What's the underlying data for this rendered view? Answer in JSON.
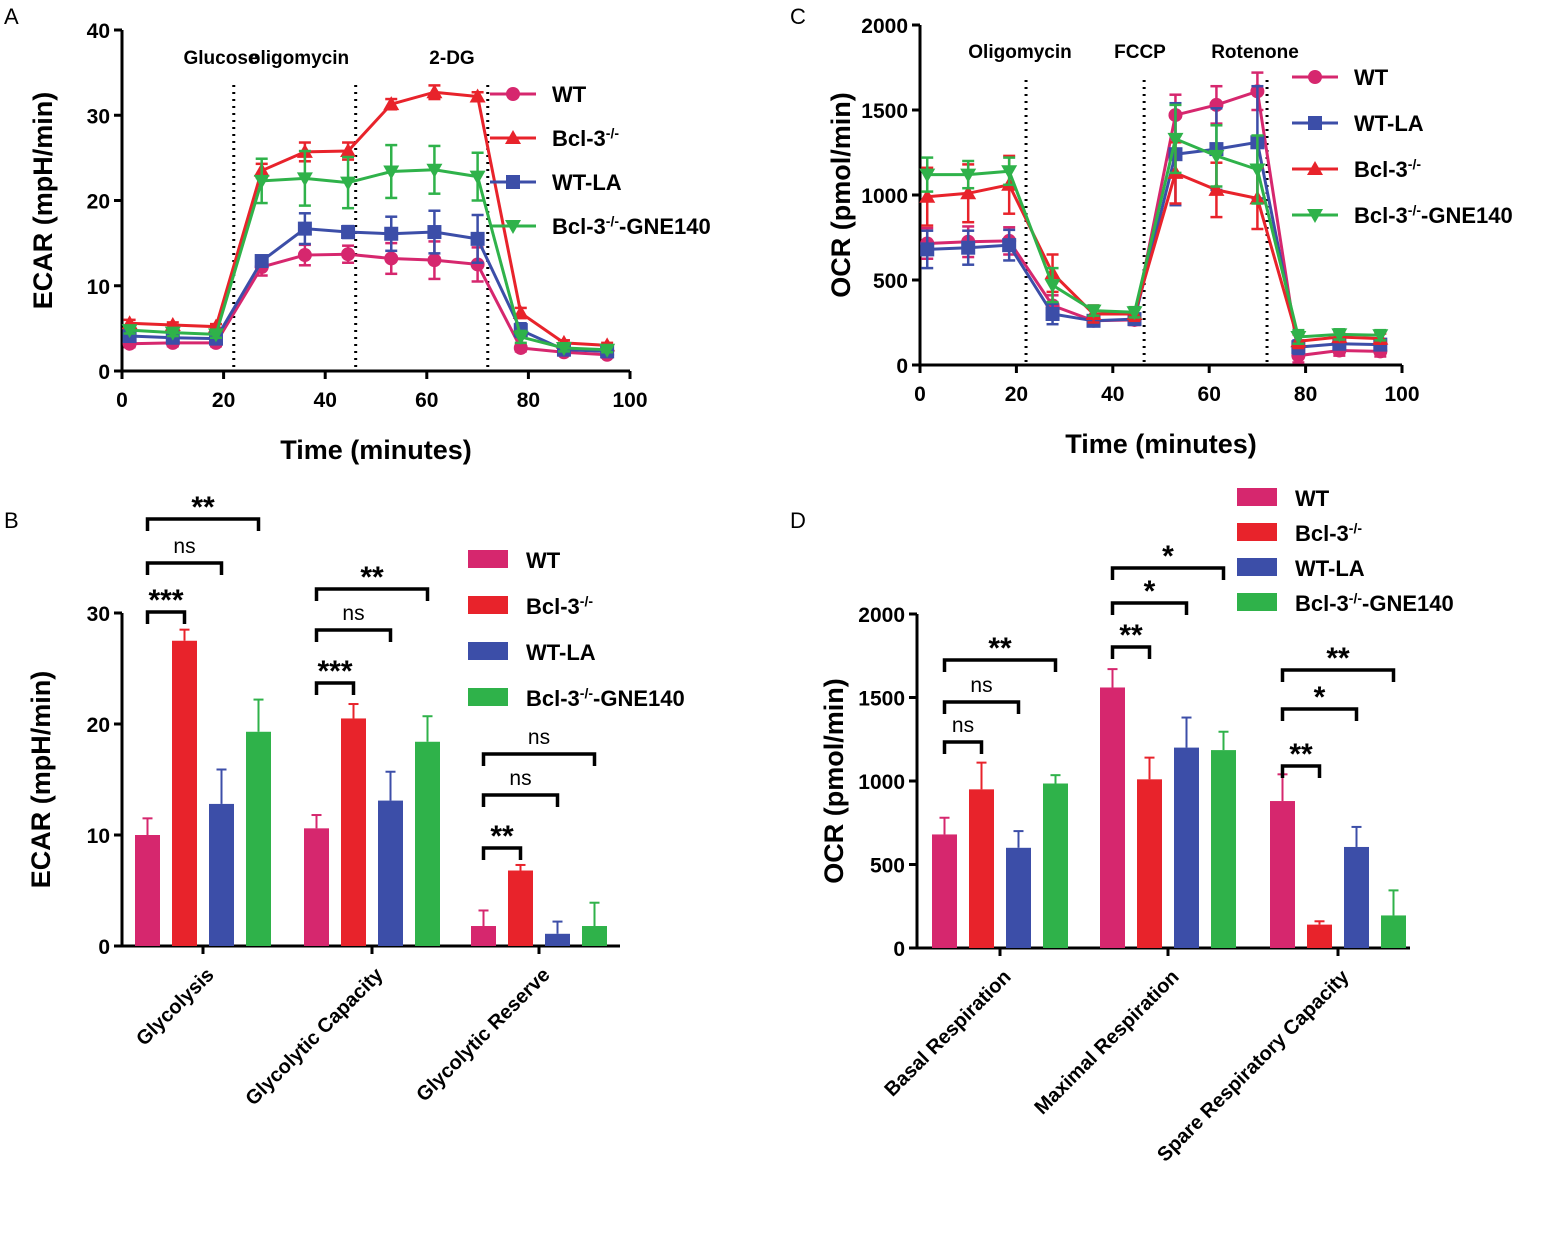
{
  "chart_data": [
    {
      "panel": "A",
      "type": "line",
      "xlabel": "Time (minutes)",
      "ylabel": "ECAR (mpH/min)",
      "xlim": [
        0,
        100
      ],
      "ylim": [
        0,
        40
      ],
      "xticks": [
        0,
        20,
        40,
        60,
        80,
        100
      ],
      "yticks": [
        0,
        10,
        20,
        30,
        40
      ],
      "injections": [
        {
          "label": "Glucose",
          "x": 22
        },
        {
          "label": "oligomycin",
          "x": 46
        },
        {
          "label": "2-DG",
          "x": 72
        }
      ],
      "x": [
        1.5,
        10,
        18.5,
        27.5,
        36,
        44.5,
        53,
        61.5,
        70,
        78.5,
        87,
        95.5
      ],
      "series": [
        {
          "name": "WT",
          "color": "#d6276e",
          "marker": "circle",
          "values": [
            3.2,
            3.3,
            3.3,
            12.2,
            13.6,
            13.7,
            13.2,
            13.0,
            12.5,
            2.7,
            2.2,
            1.9
          ],
          "errors": [
            0.4,
            0.4,
            0.4,
            1.0,
            1.2,
            1.0,
            1.8,
            2.2,
            2.0,
            0.4,
            0.3,
            0.3
          ]
        },
        {
          "name": "Bcl-3-/-",
          "sup": "-/-",
          "base": "Bcl-3",
          "suffix": "",
          "color": "#e8232b",
          "marker": "triangle-up",
          "values": [
            5.6,
            5.4,
            5.2,
            23.5,
            25.7,
            25.8,
            31.3,
            32.7,
            32.2,
            6.8,
            3.3,
            3.0
          ],
          "errors": [
            0.4,
            0.3,
            0.3,
            0.8,
            1.1,
            1.0,
            0.6,
            0.8,
            0.5,
            0.6,
            0.3,
            0.3
          ]
        },
        {
          "name": "WT-LA",
          "color": "#3c4ea8",
          "marker": "square",
          "values": [
            4.1,
            3.9,
            3.8,
            12.9,
            16.7,
            16.3,
            16.1,
            16.3,
            15.5,
            4.8,
            2.5,
            2.3
          ],
          "errors": [
            0.5,
            0.4,
            0.4,
            0.6,
            1.8,
            0.7,
            2.0,
            2.5,
            2.8,
            0.8,
            0.3,
            0.3
          ]
        },
        {
          "name": "Bcl-3-/--GNE140",
          "base": "Bcl-3",
          "sup": "-/-",
          "suffix": "-GNE140",
          "color": "#2fb24a",
          "marker": "triangle-down",
          "values": [
            4.8,
            4.5,
            4.3,
            22.3,
            22.6,
            22.1,
            23.4,
            23.6,
            22.8,
            4.0,
            2.7,
            2.5
          ],
          "errors": [
            0.4,
            0.4,
            0.4,
            2.6,
            3.2,
            3.0,
            3.1,
            2.8,
            2.8,
            0.7,
            0.4,
            0.3
          ]
        }
      ]
    },
    {
      "panel": "C",
      "type": "line",
      "xlabel": "Time (minutes)",
      "ylabel": "OCR (pmol/min)",
      "xlim": [
        0,
        100
      ],
      "ylim": [
        0,
        2000
      ],
      "xticks": [
        0,
        20,
        40,
        60,
        80,
        100
      ],
      "yticks": [
        0,
        500,
        1000,
        1500,
        2000
      ],
      "injections": [
        {
          "label": "Oligomycin",
          "x": 22
        },
        {
          "label": "FCCP",
          "x": 46.5
        },
        {
          "label": "Rotenone",
          "x": 72
        }
      ],
      "x": [
        1.5,
        10,
        18.5,
        27.5,
        36,
        44.5,
        53,
        61.5,
        70,
        78.5,
        87,
        95.5
      ],
      "series": [
        {
          "name": "WT",
          "color": "#d6276e",
          "marker": "circle",
          "values": [
            715,
            725,
            730,
            350,
            260,
            265,
            1470,
            1530,
            1610,
            55,
            85,
            80
          ],
          "errors": [
            90,
            90,
            80,
            60,
            30,
            30,
            120,
            110,
            110,
            40,
            30,
            30
          ]
        },
        {
          "name": "WT-LA",
          "color": "#3c4ea8",
          "marker": "square",
          "values": [
            680,
            690,
            705,
            300,
            260,
            270,
            1240,
            1270,
            1310,
            105,
            125,
            120
          ],
          "errors": [
            110,
            100,
            90,
            60,
            30,
            30,
            300,
            240,
            330,
            40,
            30,
            30
          ]
        },
        {
          "name": "Bcl-3-/-",
          "base": "Bcl-3",
          "sup": "-/-",
          "suffix": "",
          "color": "#e8232b",
          "marker": "triangle-up",
          "values": [
            990,
            1010,
            1060,
            540,
            300,
            300,
            1130,
            1030,
            980,
            140,
            165,
            155
          ],
          "errors": [
            170,
            170,
            170,
            110,
            50,
            40,
            180,
            160,
            180,
            40,
            30,
            30
          ]
        },
        {
          "name": "Bcl-3-/--GNE140",
          "base": "Bcl-3",
          "sup": "-/-",
          "suffix": "-GNE140",
          "color": "#2fb24a",
          "marker": "triangle-down",
          "values": [
            1120,
            1120,
            1140,
            470,
            320,
            310,
            1330,
            1230,
            1150,
            165,
            180,
            175
          ],
          "errors": [
            100,
            80,
            80,
            100,
            30,
            30,
            200,
            180,
            200,
            40,
            30,
            30
          ]
        }
      ]
    },
    {
      "panel": "B",
      "type": "bar",
      "ylabel": "ECAR (mpH/min)",
      "ylim": [
        0,
        30
      ],
      "yticks": [
        0,
        10,
        20,
        30
      ],
      "categories": [
        "Glycolysis",
        "Glycolytic Capacity",
        "Glycolytic Reserve"
      ],
      "series": [
        {
          "name": "WT",
          "color": "#d6276e",
          "values": [
            10.0,
            10.6,
            1.8
          ],
          "errors": [
            1.5,
            1.2,
            1.4
          ]
        },
        {
          "name": "Bcl-3-/-",
          "base": "Bcl-3",
          "sup": "-/-",
          "suffix": "",
          "color": "#e8232b",
          "values": [
            27.5,
            20.5,
            6.8
          ],
          "errors": [
            1.0,
            1.3,
            0.5
          ]
        },
        {
          "name": "WT-LA",
          "color": "#3c4ea8",
          "values": [
            12.8,
            13.1,
            1.1
          ],
          "errors": [
            3.1,
            2.6,
            1.1
          ]
        },
        {
          "name": "Bcl-3-/--GNE140",
          "base": "Bcl-3",
          "sup": "-/-",
          "suffix": "-GNE140",
          "color": "#2fb24a",
          "values": [
            19.3,
            18.4,
            1.8
          ],
          "errors": [
            2.9,
            2.3,
            2.1
          ]
        }
      ],
      "significance": [
        {
          "group": 0,
          "to": 1,
          "label": "***"
        },
        {
          "group": 0,
          "to": 2,
          "label": "ns"
        },
        {
          "group": 0,
          "to": 3,
          "label": "**"
        },
        {
          "group": 1,
          "to": 1,
          "label": "***"
        },
        {
          "group": 1,
          "to": 2,
          "label": "ns"
        },
        {
          "group": 1,
          "to": 3,
          "label": "**"
        },
        {
          "group": 2,
          "to": 1,
          "label": "**"
        },
        {
          "group": 2,
          "to": 2,
          "label": "ns"
        },
        {
          "group": 2,
          "to": 3,
          "label": "ns"
        }
      ]
    },
    {
      "panel": "D",
      "type": "bar",
      "ylabel": "OCR (pmol/min)",
      "ylim": [
        0,
        2000
      ],
      "yticks": [
        0,
        500,
        1000,
        1500,
        2000
      ],
      "categories": [
        "Basal Respiration",
        "Maximal Respiration",
        "Spare Respiratory Capacity"
      ],
      "series": [
        {
          "name": "WT",
          "color": "#d6276e",
          "values": [
            680,
            1560,
            880
          ],
          "errors": [
            100,
            110,
            160
          ]
        },
        {
          "name": "Bcl-3-/-",
          "base": "Bcl-3",
          "sup": "-/-",
          "suffix": "",
          "color": "#e8232b",
          "values": [
            950,
            1010,
            140
          ],
          "errors": [
            160,
            130,
            20
          ]
        },
        {
          "name": "WT-LA",
          "color": "#3c4ea8",
          "values": [
            600,
            1200,
            605
          ],
          "errors": [
            100,
            180,
            120
          ]
        },
        {
          "name": "Bcl-3-/--GNE140",
          "base": "Bcl-3",
          "sup": "-/-",
          "suffix": "-GNE140",
          "color": "#2fb24a",
          "values": [
            985,
            1185,
            195
          ],
          "errors": [
            50,
            110,
            150
          ]
        }
      ],
      "significance": [
        {
          "group": 0,
          "to": 1,
          "label": "ns"
        },
        {
          "group": 0,
          "to": 2,
          "label": "ns"
        },
        {
          "group": 0,
          "to": 3,
          "label": "**"
        },
        {
          "group": 1,
          "to": 1,
          "label": "**"
        },
        {
          "group": 1,
          "to": 2,
          "label": "*"
        },
        {
          "group": 1,
          "to": 3,
          "label": "*"
        },
        {
          "group": 2,
          "to": 1,
          "label": "**"
        },
        {
          "group": 2,
          "to": 2,
          "label": "*"
        },
        {
          "group": 2,
          "to": 3,
          "label": "**"
        }
      ]
    }
  ],
  "panel_letters": [
    "A",
    "B",
    "C",
    "D"
  ]
}
